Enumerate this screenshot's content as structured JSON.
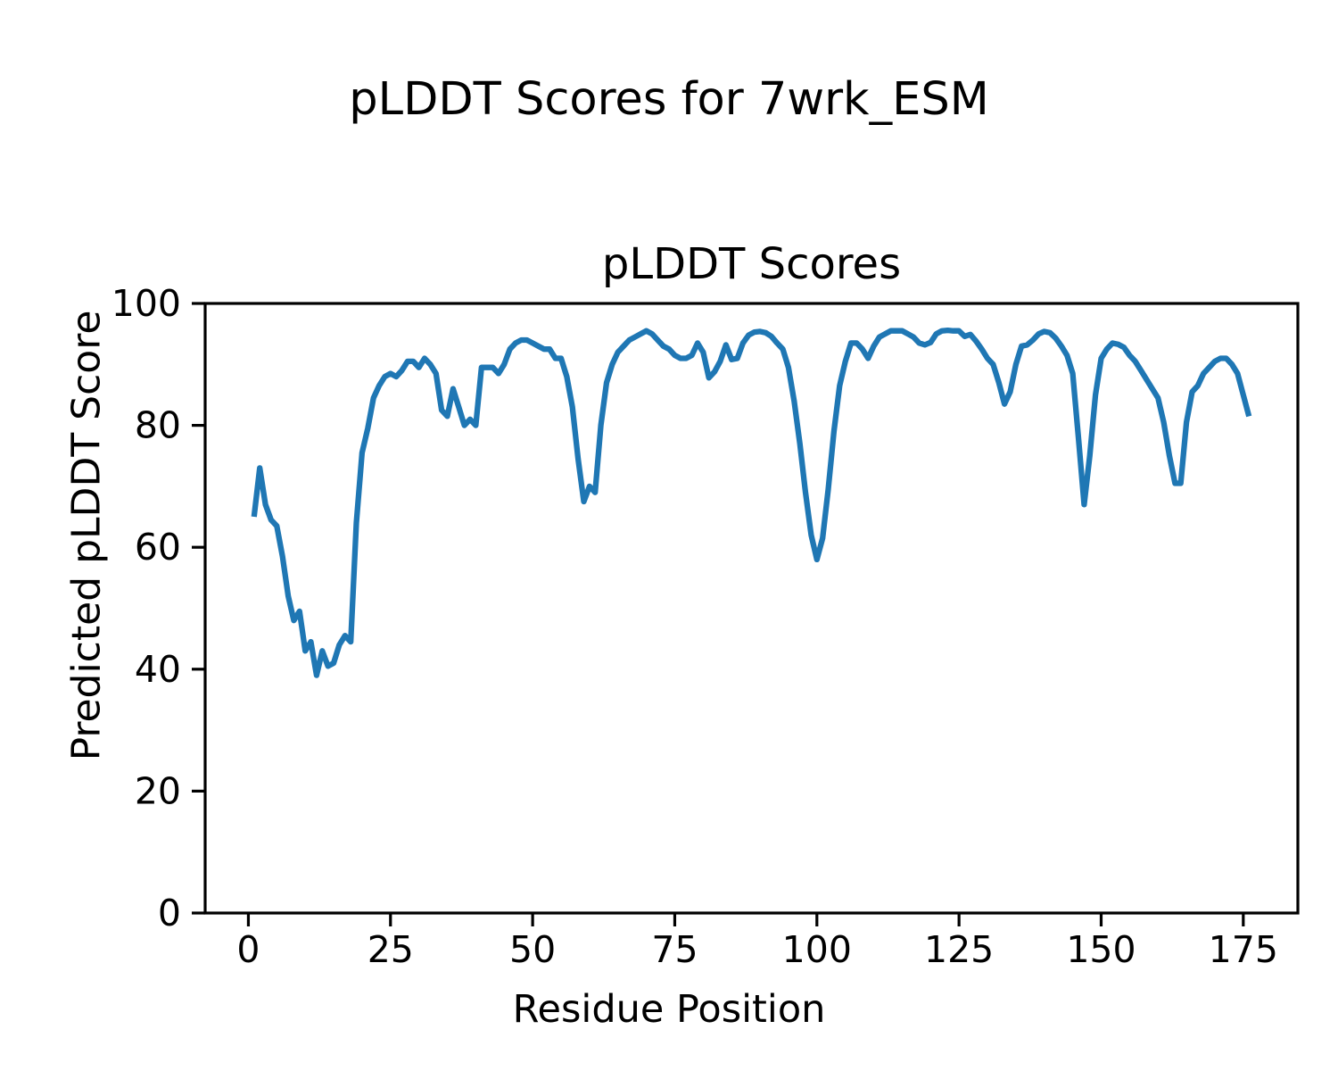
{
  "chart_data": {
    "type": "line",
    "suptitle": "pLDDT Scores for 7wrk_ESM",
    "title": "pLDDT Scores",
    "xlabel": "Residue Position",
    "ylabel": "Predicted pLDDT Score",
    "x_ticks": [
      0,
      25,
      50,
      75,
      100,
      125,
      150,
      175
    ],
    "y_ticks": [
      0,
      20,
      40,
      60,
      80,
      100
    ],
    "xlim": [
      -7.6,
      184.6
    ],
    "ylim": [
      0,
      100
    ],
    "grid": false,
    "legend_position": "none",
    "line_color": "#1f77b4",
    "axis_color": "#000000",
    "background_color": "#ffffff",
    "series": [
      {
        "name": "pLDDT",
        "x_start": 1,
        "values": [
          65,
          73,
          67,
          64.5,
          63.5,
          58.5,
          52,
          48,
          49.5,
          43,
          44.5,
          39,
          43,
          40.5,
          41,
          44,
          45.5,
          44.5,
          64,
          75.5,
          79.5,
          84.5,
          86.5,
          88,
          88.5,
          88,
          89,
          90.5,
          90.5,
          89.5,
          91,
          90,
          88.5,
          82.5,
          81.5,
          86,
          83,
          80,
          81,
          80,
          89.5,
          89.5,
          89.5,
          88.5,
          90,
          92.5,
          93.5,
          94,
          94,
          93.5,
          93,
          92.5,
          92.5,
          91,
          91,
          88,
          83,
          74.5,
          67.5,
          70,
          69,
          80,
          87,
          90,
          92,
          93,
          94,
          94.5,
          95,
          95.5,
          95,
          94,
          93,
          92.5,
          91.5,
          91,
          91,
          91.5,
          93.5,
          92,
          87.8,
          88.8,
          90.5,
          93.2,
          90.8,
          91,
          93.5,
          94.8,
          95.3,
          95.4,
          95.2,
          94.6,
          93.5,
          92.5,
          89.5,
          84,
          77,
          69,
          62,
          58,
          61.5,
          69.5,
          79,
          86.5,
          90.5,
          93.5,
          93.5,
          92.5,
          91,
          93,
          94.5,
          95,
          95.5,
          95.5,
          95.5,
          95,
          94.5,
          93.5,
          93.2,
          93.6,
          95,
          95.5,
          95.6,
          95.5,
          95.5,
          94.6,
          94.9,
          93.8,
          92.5,
          91,
          90,
          87,
          83.5,
          85.5,
          90,
          93,
          93.2,
          94,
          95,
          95.4,
          95.2,
          94.3,
          93,
          91.5,
          88.5,
          78,
          67,
          75,
          85,
          91,
          92.5,
          93.5,
          93.3,
          92.8,
          91.5,
          90.5,
          89,
          87.5,
          86,
          84.5,
          80.5,
          75,
          70.5,
          70.5,
          80.5,
          85.5,
          86.5,
          88.5,
          89.5,
          90.5,
          91,
          91,
          90,
          88.5,
          85,
          81.5
        ]
      }
    ]
  }
}
